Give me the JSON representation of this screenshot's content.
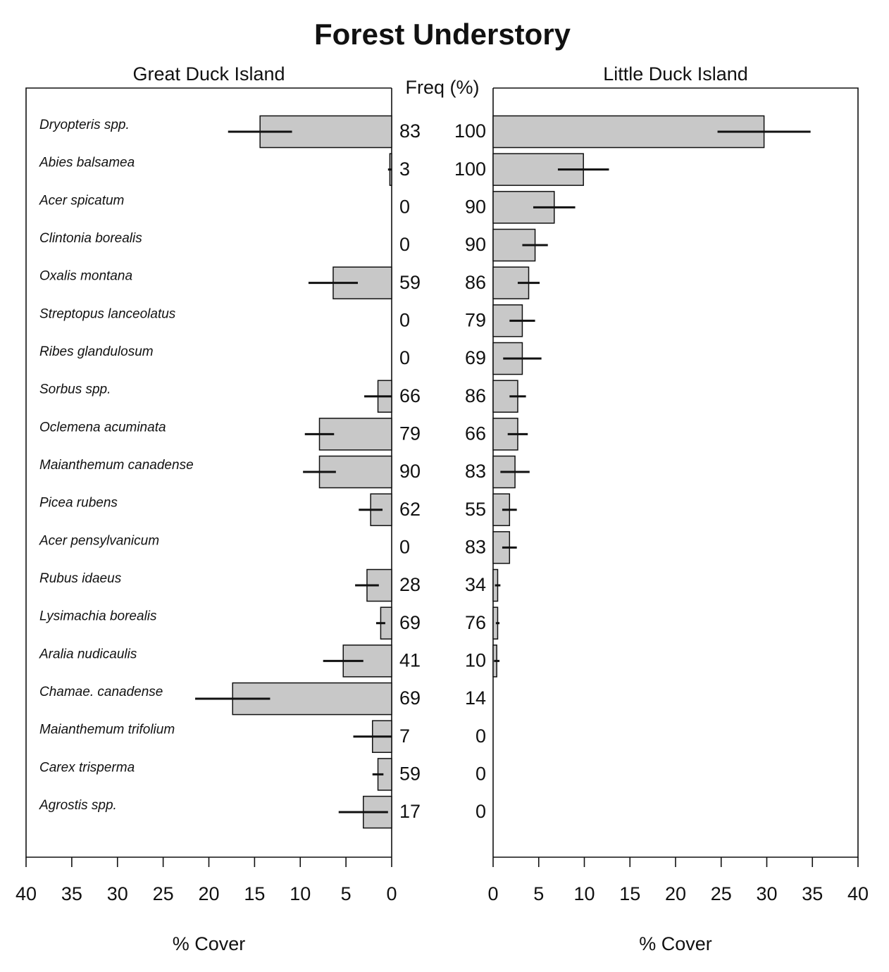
{
  "chart_data": {
    "type": "bar",
    "orientation": "horizontal",
    "title": "Forest Understory",
    "freq_label": "Freq (%)",
    "categories": [
      "Dryopteris spp.",
      "Abies balsamea",
      "Acer spicatum",
      "Clintonia borealis",
      "Oxalis montana",
      "Streptopus lanceolatus",
      "Ribes glandulosum",
      "Sorbus spp.",
      "Oclemena acuminata",
      "Maianthemum canadense",
      "Picea rubens",
      "Acer pensylvanicum",
      "Rubus idaeus",
      "Lysimachia borealis",
      "Aralia nudicaulis",
      "Chamae. canadense",
      "Maianthemum trifolium",
      "Carex trisperma",
      "Agrostis spp."
    ],
    "panels": [
      {
        "subtitle": "Great Duck Island",
        "xlabel": "% Cover",
        "xlim": [
          40,
          0
        ],
        "xticks": [
          40,
          35,
          30,
          25,
          20,
          15,
          10,
          5,
          0
        ],
        "color": "#c8c8c8",
        "values": [
          14.4,
          0.2,
          0,
          0,
          6.4,
          0,
          0,
          1.5,
          7.9,
          7.9,
          2.3,
          0,
          2.7,
          1.2,
          5.3,
          17.4,
          2.1,
          1.5,
          3.1
        ],
        "errors": [
          3.5,
          0.2,
          0,
          0,
          2.7,
          0,
          0,
          1.5,
          1.6,
          1.8,
          1.3,
          0,
          1.3,
          0.5,
          2.2,
          4.1,
          2.1,
          0.6,
          2.7
        ],
        "freq": [
          83,
          3,
          0,
          0,
          59,
          0,
          0,
          66,
          79,
          90,
          62,
          0,
          28,
          69,
          41,
          69,
          7,
          59,
          17
        ]
      },
      {
        "subtitle": "Little Duck Island",
        "xlabel": "% Cover",
        "xlim": [
          0,
          40
        ],
        "xticks": [
          0,
          5,
          10,
          15,
          20,
          25,
          30,
          35,
          40
        ],
        "color": "#c8c8c8",
        "values": [
          29.7,
          9.9,
          6.7,
          4.6,
          3.9,
          3.2,
          3.2,
          2.7,
          2.7,
          2.4,
          1.8,
          1.8,
          0.5,
          0.5,
          0.4,
          0,
          0,
          0,
          0
        ],
        "errors": [
          5.1,
          2.8,
          2.3,
          1.4,
          1.2,
          1.4,
          2.1,
          0.9,
          1.1,
          1.6,
          0.8,
          0.8,
          0.3,
          0.2,
          0.3,
          0,
          0,
          0,
          0
        ],
        "freq": [
          100,
          100,
          90,
          90,
          86,
          79,
          69,
          86,
          66,
          83,
          55,
          83,
          34,
          76,
          10,
          14,
          0,
          0,
          0
        ]
      }
    ]
  }
}
